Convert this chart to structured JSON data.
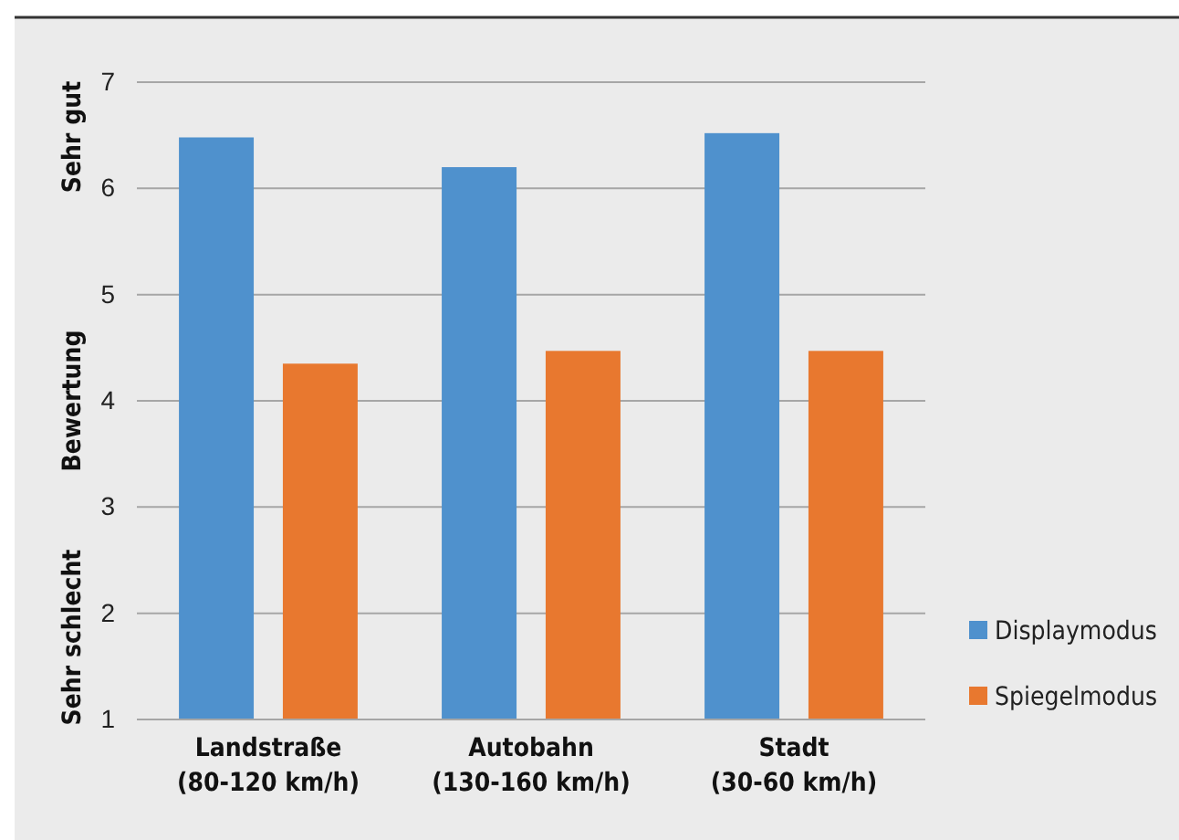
{
  "chart_data": {
    "type": "bar",
    "ylabel": "Bewertung",
    "annotations": [
      "Sehr gut",
      "Sehr schlecht"
    ],
    "categories": [
      "Landstraße\n(80-120 km/h)",
      "Autobahn\n(130-160 km/h)",
      "Stadt\n(30-60 km/h)"
    ],
    "series": [
      {
        "name": "Displaymodus",
        "color": "#4f91cd",
        "values": [
          6.48,
          6.2,
          6.52
        ]
      },
      {
        "name": "Spiegelmodus",
        "color": "#e8782f",
        "values": [
          4.35,
          4.47,
          4.47
        ]
      }
    ],
    "ylim": [
      1,
      7
    ],
    "yticks": [
      1,
      2,
      3,
      4,
      5,
      6,
      7
    ],
    "grid": "y",
    "legend": "right"
  }
}
